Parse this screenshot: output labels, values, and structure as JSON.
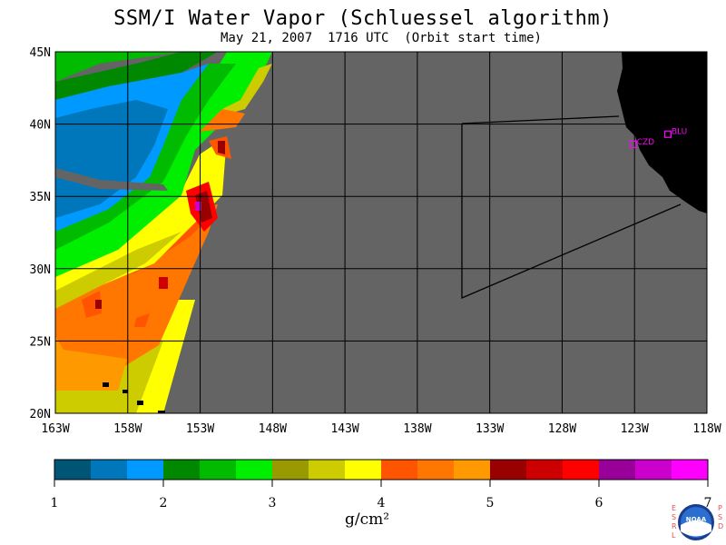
{
  "title": "SSM/I Water Vapor (Schluessel algorithm)",
  "subtitle": "May 21, 2007  1716 UTC  (Orbit start time)",
  "map": {
    "lat_labels": [
      "45N",
      "40N",
      "35N",
      "30N",
      "25N",
      "20N"
    ],
    "lon_labels": [
      "163W",
      "158W",
      "153W",
      "148W",
      "143W",
      "138W",
      "133W",
      "128W",
      "123W",
      "118W"
    ],
    "stations": [
      {
        "label": "CZD",
        "lon": -123.1,
        "lat": 38.6
      },
      {
        "label": "BLU",
        "lon": -120.7,
        "lat": 39.3
      }
    ],
    "colors": {
      "no_data": "#646464",
      "land": "#000000",
      "grid": "#000000",
      "station": "#ff00ff"
    }
  },
  "colorbar": {
    "colors": [
      "#005577",
      "#0077bb",
      "#0099ff",
      "#008800",
      "#00bb00",
      "#00ee00",
      "#999900",
      "#cccc00",
      "#ffff00",
      "#ff5500",
      "#ff7700",
      "#ff9900",
      "#990000",
      "#cc0000",
      "#ff0000",
      "#990099",
      "#cc00cc",
      "#ff00ff"
    ],
    "tick_labels": [
      "1",
      "2",
      "3",
      "4",
      "5",
      "6",
      "7"
    ],
    "units": "g/cm²"
  },
  "logo": {
    "text": "NOAA",
    "left_letters": "ESRL",
    "right_letters": "PSD"
  }
}
